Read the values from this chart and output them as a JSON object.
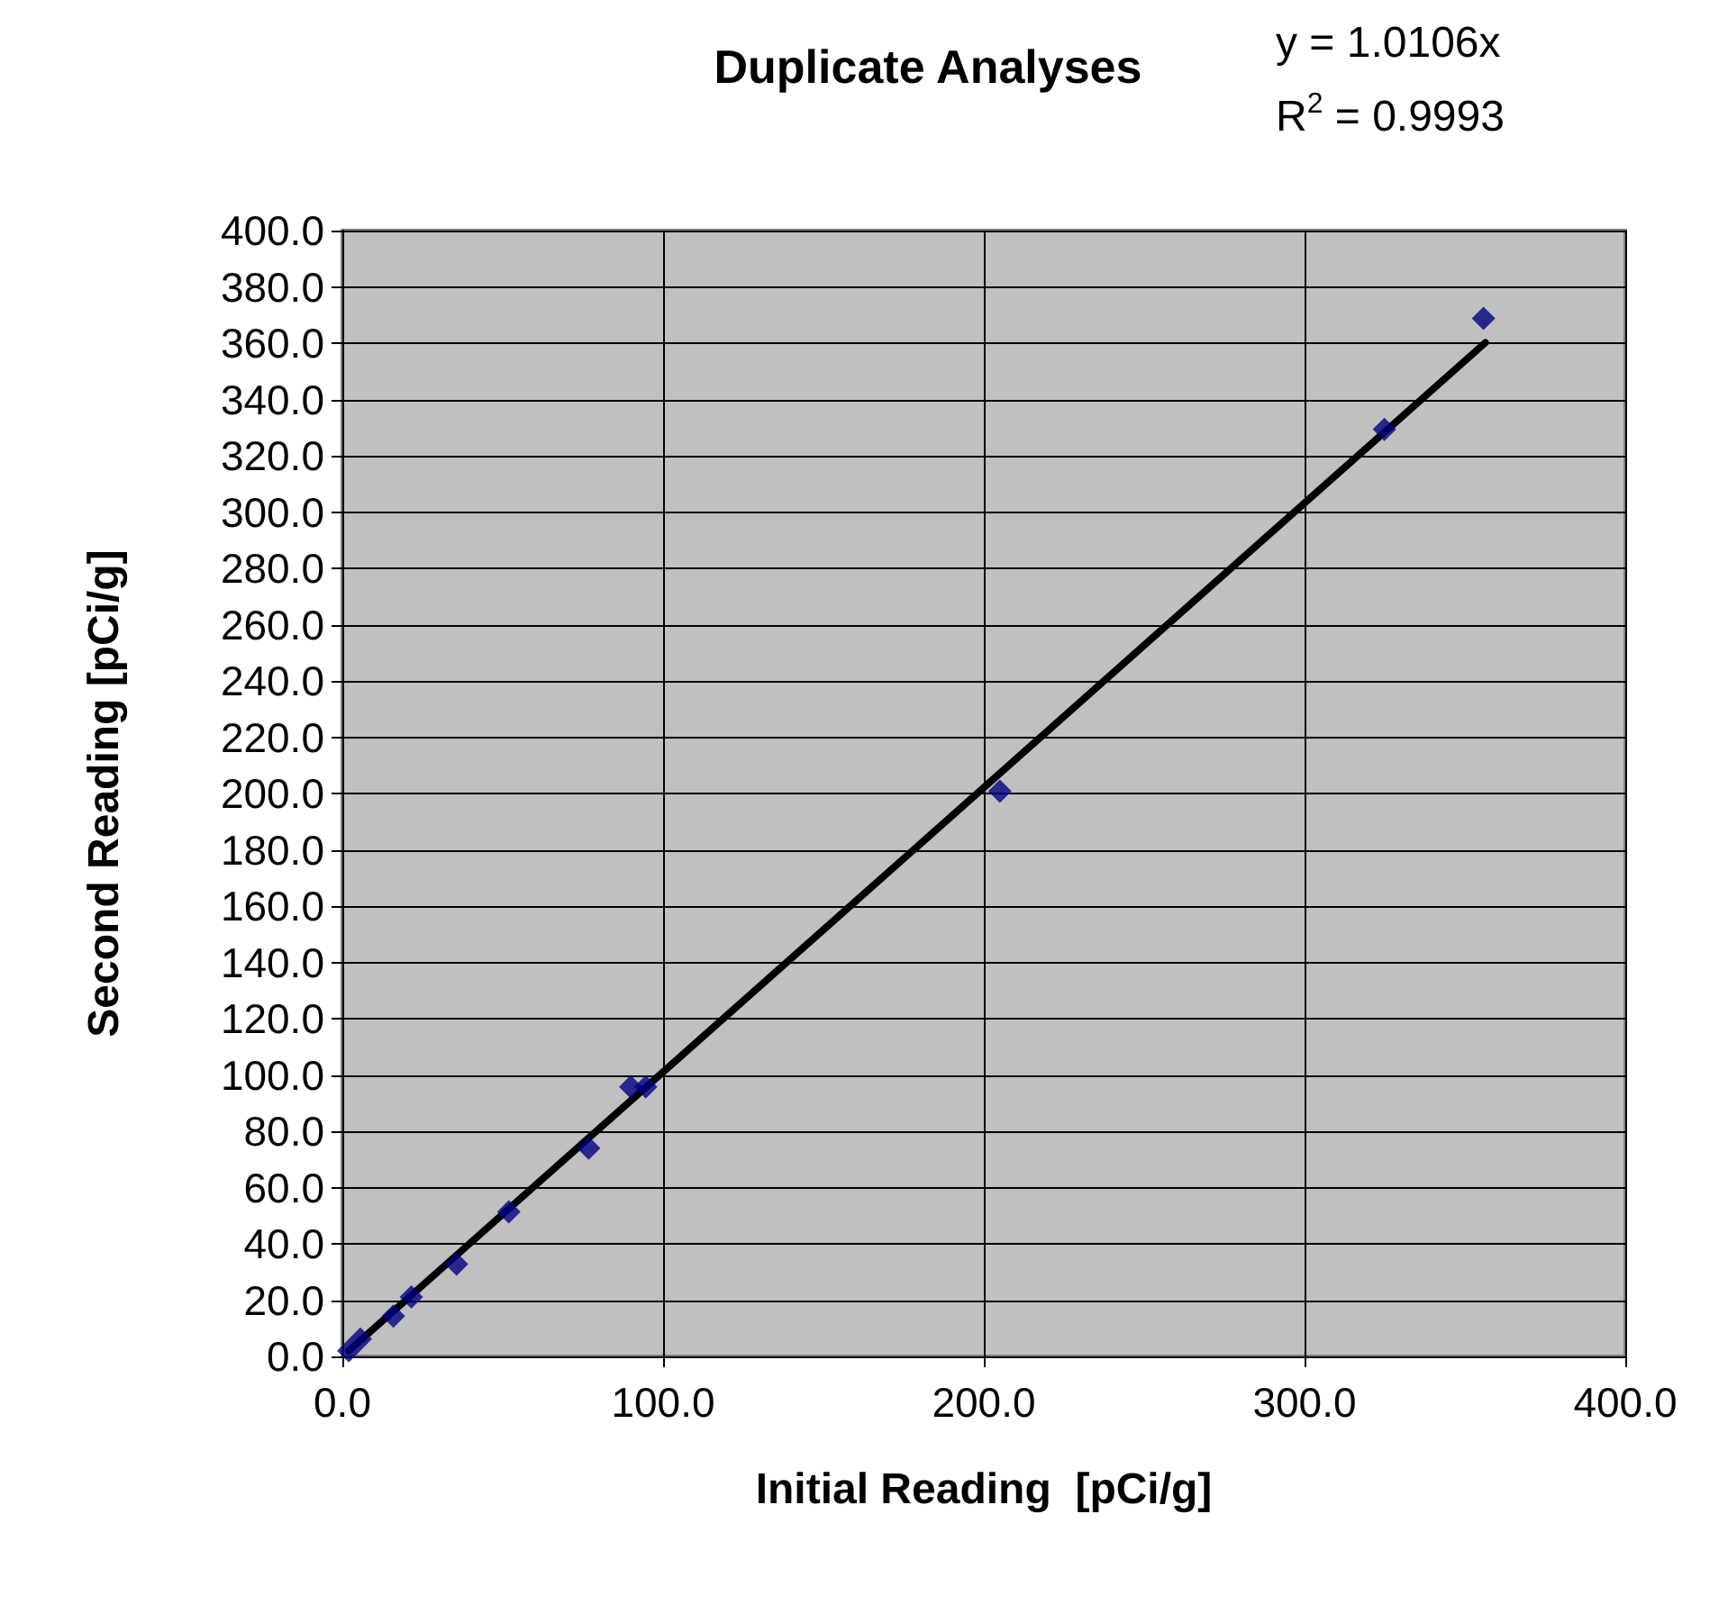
{
  "chart_data": {
    "type": "scatter",
    "title": "Duplicate Analyses",
    "xlabel": "Initial Reading  [pCi/g]",
    "ylabel": "Second Reading [pCi/g]",
    "annotations": [
      "y = 1.0106x",
      "R$^{2}$ = 0.9993"
    ],
    "series": [
      {
        "color": "#000080",
        "x": [
          2,
          5.6,
          15.9,
          21.5,
          35.6,
          51.9,
          76.8,
          89.9,
          94.6,
          205,
          324.9,
          355.8
        ],
        "values": [
          2,
          6.2,
          14.3,
          21.1,
          32.8,
          51.4,
          74,
          95.8,
          95.8,
          200.8,
          329.4,
          368.8
        ]
      },
      {
        "type": "line",
        "color": "#000000",
        "marker": "none",
        "x": [
          2,
          356.4
        ],
        "values": [
          2.0,
          360.2
        ]
      }
    ],
    "xlim": [
      0,
      400
    ],
    "xticks": [
      {
        "value": 0,
        "label": "0.0"
      },
      {
        "value": 100,
        "label": "100.0"
      },
      {
        "value": 200,
        "label": "200.0"
      },
      {
        "value": 300,
        "label": "300.0"
      },
      {
        "value": 400,
        "label": "400.0"
      }
    ],
    "ylim": [
      0,
      400
    ],
    "yticks": [
      {
        "value": 0,
        "label": "0.0"
      },
      {
        "value": 20,
        "label": "20.0"
      },
      {
        "value": 40,
        "label": "40.0"
      },
      {
        "value": 60,
        "label": "60.0"
      },
      {
        "value": 80,
        "label": "80.0"
      },
      {
        "value": 100,
        "label": "100.0"
      },
      {
        "value": 120,
        "label": "120.0"
      },
      {
        "value": 140,
        "label": "140.0"
      },
      {
        "value": 160,
        "label": "160.0"
      },
      {
        "value": 180,
        "label": "180.0"
      },
      {
        "value": 200,
        "label": "200.0"
      },
      {
        "value": 220,
        "label": "220.0"
      },
      {
        "value": 240,
        "label": "240.0"
      },
      {
        "value": 260,
        "label": "260.0"
      },
      {
        "value": 280,
        "label": "280.0"
      },
      {
        "value": 300,
        "label": "300.0"
      },
      {
        "value": 320,
        "label": "320.0"
      },
      {
        "value": 340,
        "label": "340.0"
      },
      {
        "value": 360,
        "label": "360.0"
      },
      {
        "value": 380,
        "label": "380.0"
      },
      {
        "value": 400,
        "label": "400.0"
      }
    ],
    "grid": true,
    "marker": "diamond"
  }
}
